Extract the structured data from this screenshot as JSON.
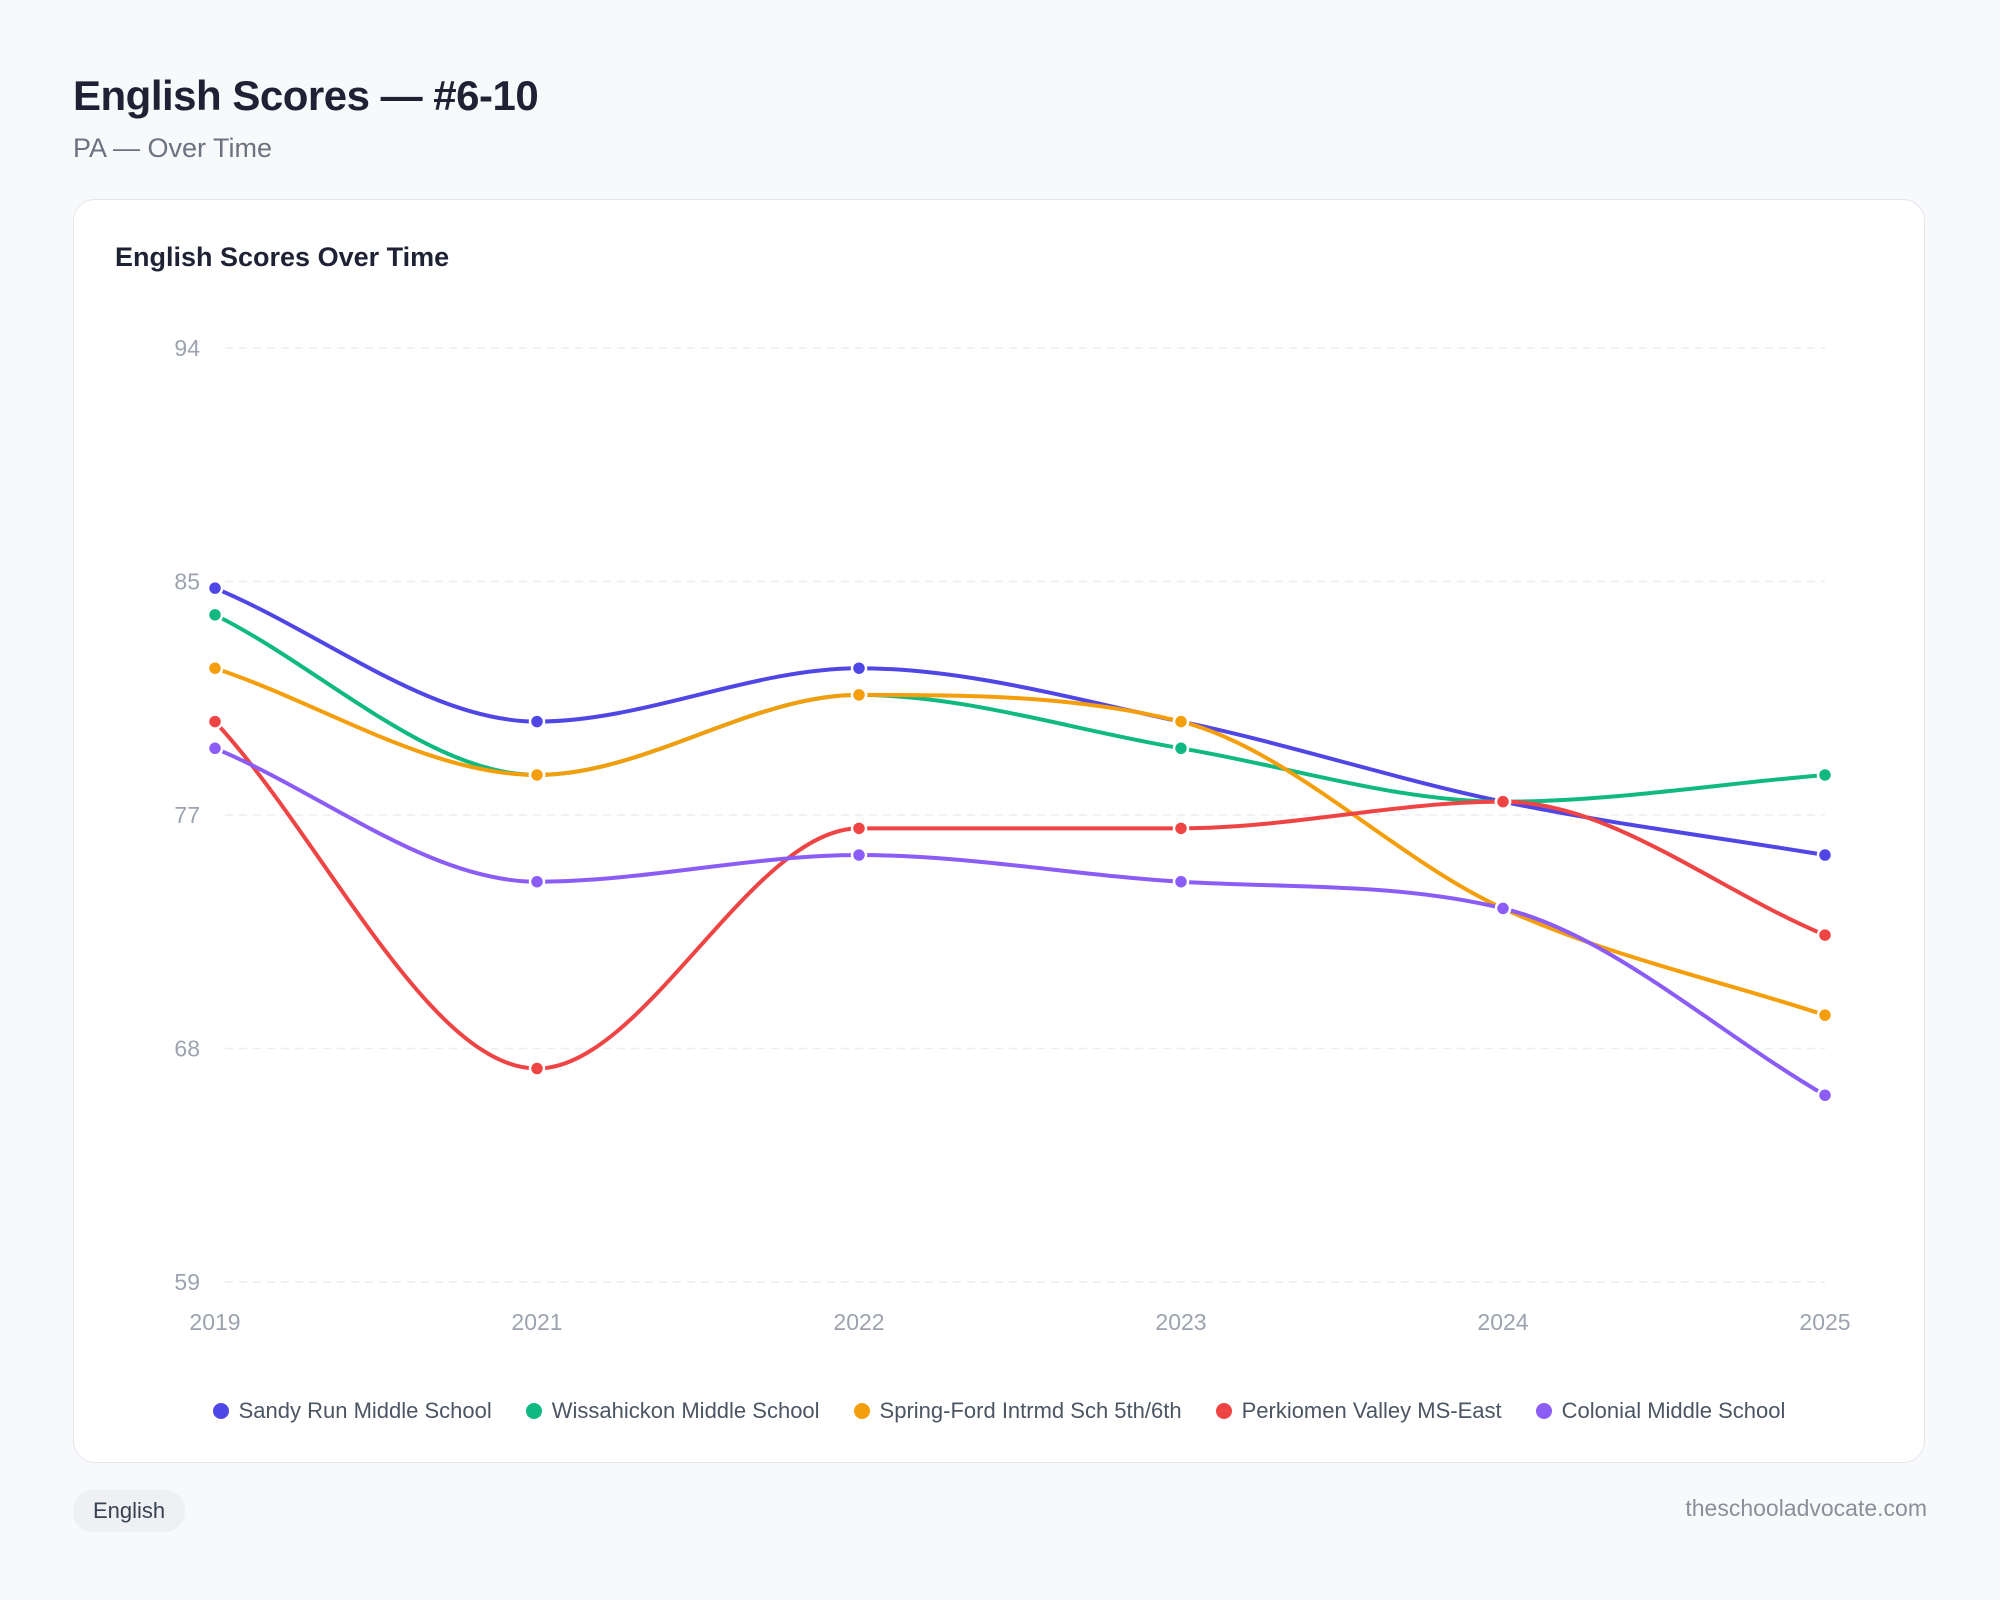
{
  "header": {
    "title": "English Scores — #6-10",
    "subtitle": "PA — Over Time"
  },
  "card": {
    "title": "English Scores Over Time"
  },
  "footer": {
    "badge": "English",
    "site": "theschooladvocate.com"
  },
  "chart_data": {
    "type": "line",
    "title": "English Scores Over Time",
    "categories": [
      "2019",
      "2021",
      "2022",
      "2023",
      "2024",
      "2025"
    ],
    "ylim": [
      59,
      94
    ],
    "yticks": [
      "94",
      "85",
      "77",
      "68",
      "59"
    ],
    "grid": true,
    "legend": "bottom",
    "series": [
      {
        "name": "Sandy Run Middle School",
        "color": "#4f46e5",
        "values": [
          85,
          80,
          82,
          80,
          77,
          75
        ]
      },
      {
        "name": "Wissahickon Middle School",
        "color": "#10b981",
        "values": [
          84,
          78,
          81,
          79,
          77,
          78
        ]
      },
      {
        "name": "Spring-Ford Intrmd Sch 5th/6th",
        "color": "#f59e0b",
        "values": [
          82,
          78,
          81,
          80,
          73,
          69
        ]
      },
      {
        "name": "Perkiomen Valley MS-East",
        "color": "#ef4444",
        "values": [
          80,
          67,
          76,
          76,
          77,
          72
        ]
      },
      {
        "name": "Colonial Middle School",
        "color": "#8b5cf6",
        "values": [
          79,
          74,
          75,
          74,
          73,
          66
        ]
      }
    ]
  }
}
